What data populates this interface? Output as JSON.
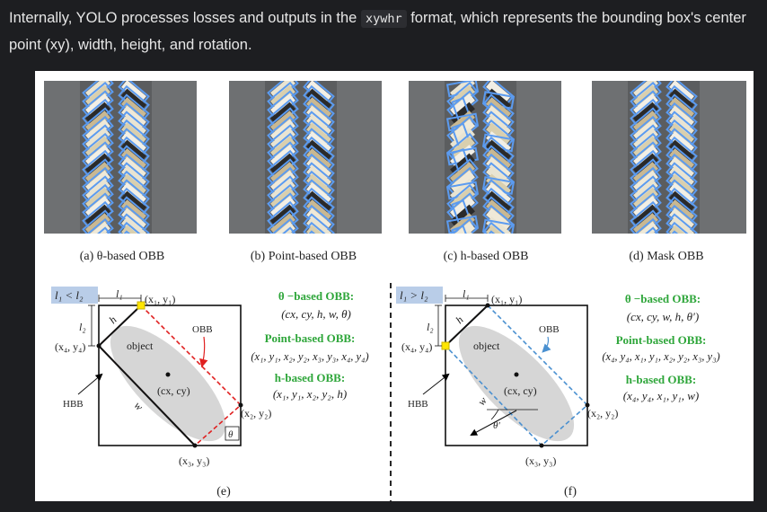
{
  "intro": {
    "text_before": "Internally, YOLO processes losses and outputs in the",
    "code": "xywhr",
    "text_after": "format, which represents the bounding box's center point (xy), width, height, and rotation."
  },
  "figure": {
    "panels": [
      {
        "caption": "(a) θ-based OBB"
      },
      {
        "caption": "(b) Point-based OBB"
      },
      {
        "caption": "(c) h-based OBB"
      },
      {
        "caption": "(d) Mask OBB"
      }
    ],
    "diagram_e": {
      "caption": "(e)",
      "condition": "l₁ < l₂",
      "l1": "l₁",
      "l2": "l₂",
      "h": "h",
      "w": "w",
      "theta": "θ",
      "p1": "(x₁, y₁)",
      "p2": "(x₂, y₂)",
      "p3": "(x₃, y₃)",
      "p4": "(x₄, y₄)",
      "object": "object",
      "center": "(cx, cy)",
      "obb": "OBB",
      "hbb": "HBB"
    },
    "diagram_f": {
      "caption": "(f)",
      "condition": "l₁ > l₂",
      "l1": "l₁",
      "l2": "l₂",
      "h": "h",
      "w": "w",
      "theta": "θ'",
      "p1": "(x₁, y₁)",
      "p2": "(x₂, y₂)",
      "p3": "(x₃, y₃)",
      "p4": "(x₄, y₄)",
      "object": "object",
      "center": "(cx, cy)",
      "obb": "OBB",
      "hbb": "HBB"
    },
    "formulas_e": {
      "theta_title": "θ −based OBB:",
      "theta_expr": "(cx, cy, h, w, θ)",
      "point_title": "Point-based OBB:",
      "point_expr": "(x₁, y₁, x₂, y₂, x₃, y₃, x₄, y₄)",
      "h_title": "h-based OBB:",
      "h_expr": "(x₁, y₁, x₂, y₂, h)"
    },
    "formulas_f": {
      "theta_title": "θ −based OBB:",
      "theta_expr": "(cx, cy, w, h, θ′)",
      "point_title": "Point-based OBB:",
      "point_expr": "(x₄, y₄, x₁, y₁, x₂, y₂, x₃, y₃)",
      "h_title": "h-based OBB:",
      "h_expr": "(x₄, y₄, x₁, y₁, w)"
    },
    "colors": {
      "green_title": "#2ea63a",
      "red_box": "#e02020",
      "blue_box": "#4a90d0",
      "obb_blue": "#5b9bf0",
      "highlight": "#b9cde8"
    }
  }
}
